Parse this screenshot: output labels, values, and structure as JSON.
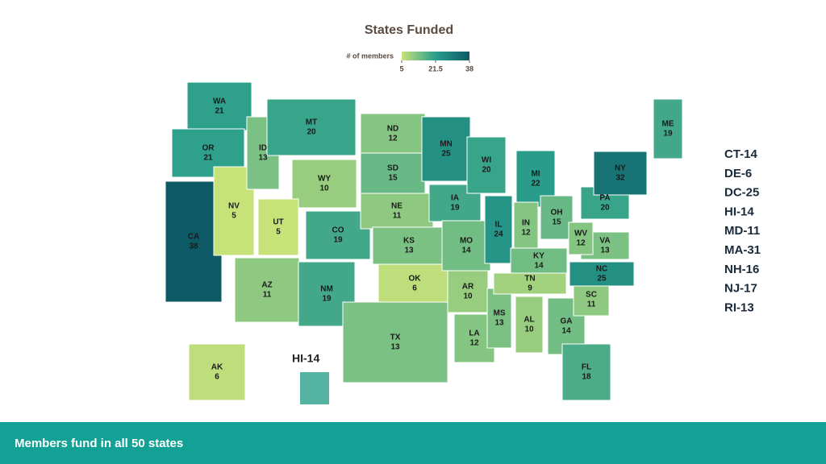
{
  "header": {
    "title": "States Funded"
  },
  "legend": {
    "title": "# of members",
    "ticks": [
      5,
      21.5,
      38
    ],
    "colors": [
      "#c8e27a",
      "#2a9e8c",
      "#0d5a66"
    ]
  },
  "states": [
    {
      "abbr": "WA",
      "value": 21
    },
    {
      "abbr": "OR",
      "value": 21
    },
    {
      "abbr": "CA",
      "value": 38
    },
    {
      "abbr": "NV",
      "value": 5
    },
    {
      "abbr": "ID",
      "value": 13
    },
    {
      "abbr": "MT",
      "value": 20
    },
    {
      "abbr": "WY",
      "value": 10
    },
    {
      "abbr": "UT",
      "value": 5
    },
    {
      "abbr": "CO",
      "value": 19
    },
    {
      "abbr": "AZ",
      "value": 11
    },
    {
      "abbr": "NM",
      "value": 19
    },
    {
      "abbr": "ND",
      "value": 12
    },
    {
      "abbr": "SD",
      "value": 15
    },
    {
      "abbr": "NE",
      "value": 11
    },
    {
      "abbr": "KS",
      "value": 13
    },
    {
      "abbr": "OK",
      "value": 6
    },
    {
      "abbr": "TX",
      "value": 13
    },
    {
      "abbr": "MN",
      "value": 25
    },
    {
      "abbr": "IA",
      "value": 19
    },
    {
      "abbr": "MO",
      "value": 14
    },
    {
      "abbr": "AR",
      "value": 10
    },
    {
      "abbr": "LA",
      "value": 12
    },
    {
      "abbr": "WI",
      "value": 20
    },
    {
      "abbr": "IL",
      "value": 24
    },
    {
      "abbr": "MS",
      "value": 13
    },
    {
      "abbr": "MI",
      "value": 22
    },
    {
      "abbr": "IN",
      "value": 12
    },
    {
      "abbr": "KY",
      "value": 14
    },
    {
      "abbr": "TN",
      "value": 9
    },
    {
      "abbr": "AL",
      "value": 10
    },
    {
      "abbr": "OH",
      "value": 15
    },
    {
      "abbr": "GA",
      "value": 14
    },
    {
      "abbr": "FL",
      "value": 18
    },
    {
      "abbr": "SC",
      "value": 11
    },
    {
      "abbr": "NC",
      "value": 25
    },
    {
      "abbr": "VA",
      "value": 13
    },
    {
      "abbr": "WV",
      "value": 12
    },
    {
      "abbr": "PA",
      "value": 20
    },
    {
      "abbr": "NY",
      "value": 32
    },
    {
      "abbr": "ME",
      "value": 19
    },
    {
      "abbr": "AK",
      "value": 6
    }
  ],
  "hawaii_label": "HI-14",
  "small_states": [
    "CT-14",
    "DE-6",
    "DC-25",
    "HI-14",
    "MD-11",
    "MA-31",
    "NH-16",
    "NJ-17",
    "RI-13"
  ],
  "footer": "Members fund in all 50 states"
}
